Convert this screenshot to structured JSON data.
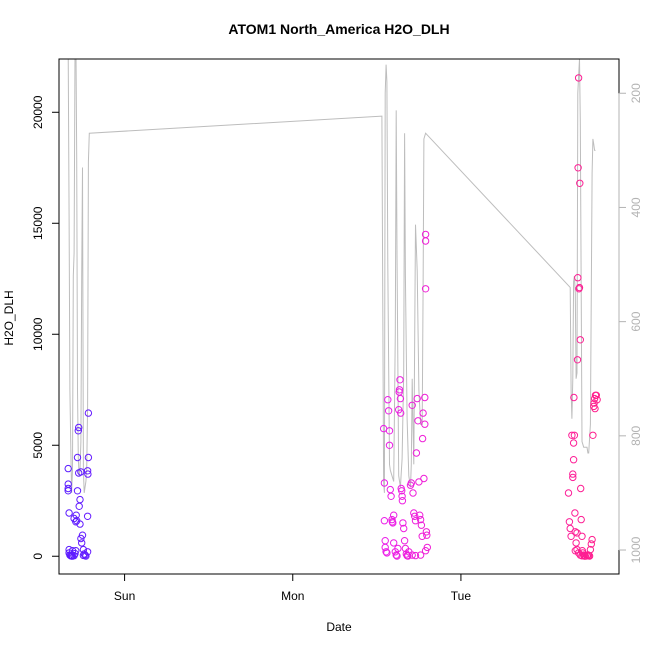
{
  "chart_data": {
    "type": "scatter",
    "title": "ATOM1 North_America H2O_DLH",
    "xlabel": "Date",
    "ylabel": "H2O_DLH",
    "x_unit": "days since first day (Sat 00:00)",
    "xlim": [
      0.61,
      3.94
    ],
    "ylim": [
      -800,
      22400
    ],
    "x_ticks": [
      {
        "value": 1,
        "label": "Sun"
      },
      {
        "value": 2,
        "label": "Mon"
      },
      {
        "value": 3,
        "label": "Tue"
      }
    ],
    "y_ticks": [
      0,
      5000,
      10000,
      15000,
      20000
    ],
    "y2_label_color": "#b3b3b3",
    "y2_lim": [
      1042,
      140
    ],
    "y2_ticks": [
      200,
      400,
      600,
      800,
      1000
    ],
    "grid": false,
    "color_by_time": {
      "start": "#5b1cff",
      "mid": "#e61eff",
      "end": "#ff1e8c"
    },
    "pressure_line_color": "#bdbdbd",
    "scatter_series": [
      {
        "name": "segment1",
        "points": [
          [
            0.665,
            3950
          ],
          [
            0.665,
            3050
          ],
          [
            0.665,
            3250
          ],
          [
            0.665,
            2950
          ],
          [
            0.67,
            1950
          ],
          [
            0.67,
            300
          ],
          [
            0.67,
            150
          ],
          [
            0.675,
            50
          ],
          [
            0.68,
            20
          ],
          [
            0.685,
            10
          ],
          [
            0.69,
            5
          ],
          [
            0.7,
            30
          ],
          [
            0.705,
            120
          ],
          [
            0.71,
            250
          ],
          [
            0.71,
            1550
          ],
          [
            0.712,
            1850
          ],
          [
            0.715,
            1600
          ],
          [
            0.72,
            2950
          ],
          [
            0.72,
            4450
          ],
          [
            0.725,
            5650
          ],
          [
            0.727,
            5800
          ],
          [
            0.727,
            3750
          ],
          [
            0.73,
            2250
          ],
          [
            0.735,
            2550
          ],
          [
            0.735,
            1450
          ],
          [
            0.74,
            800
          ],
          [
            0.745,
            600
          ],
          [
            0.75,
            950
          ],
          [
            0.755,
            300
          ],
          [
            0.76,
            100
          ],
          [
            0.765,
            50
          ],
          [
            0.77,
            10
          ],
          [
            0.78,
            200
          ],
          [
            0.78,
            1800
          ],
          [
            0.78,
            3850
          ],
          [
            0.782,
            3700
          ],
          [
            0.785,
            4450
          ],
          [
            0.785,
            6450
          ],
          [
            0.69,
            250
          ],
          [
            0.7,
            1700
          ],
          [
            0.74,
            3800
          ],
          [
            0.755,
            40
          ]
        ]
      },
      {
        "name": "segment2",
        "points": [
          [
            2.54,
            5750
          ],
          [
            2.545,
            3300
          ],
          [
            2.545,
            1600
          ],
          [
            2.55,
            700
          ],
          [
            2.55,
            400
          ],
          [
            2.555,
            200
          ],
          [
            2.56,
            150
          ],
          [
            2.565,
            7050
          ],
          [
            2.57,
            6550
          ],
          [
            2.575,
            5650
          ],
          [
            2.575,
            5000
          ],
          [
            2.58,
            3000
          ],
          [
            2.585,
            2700
          ],
          [
            2.59,
            1650
          ],
          [
            2.592,
            1550
          ],
          [
            2.595,
            1500
          ],
          [
            2.6,
            600
          ],
          [
            2.61,
            200
          ],
          [
            2.615,
            50
          ],
          [
            2.62,
            10
          ],
          [
            2.625,
            350
          ],
          [
            2.63,
            6600
          ],
          [
            2.633,
            7400
          ],
          [
            2.635,
            7500
          ],
          [
            2.638,
            7950
          ],
          [
            2.64,
            7100
          ],
          [
            2.642,
            6450
          ],
          [
            2.645,
            3050
          ],
          [
            2.648,
            2950
          ],
          [
            2.65,
            2700
          ],
          [
            2.652,
            2500
          ],
          [
            2.655,
            1500
          ],
          [
            2.66,
            1250
          ],
          [
            2.665,
            700
          ],
          [
            2.67,
            350
          ],
          [
            2.675,
            100
          ],
          [
            2.68,
            30
          ],
          [
            2.685,
            10
          ],
          [
            2.69,
            200
          ],
          [
            2.7,
            3200
          ],
          [
            2.705,
            3300
          ],
          [
            2.71,
            6800
          ],
          [
            2.715,
            2850
          ],
          [
            2.72,
            1950
          ],
          [
            2.725,
            1800
          ],
          [
            2.73,
            1600
          ],
          [
            2.735,
            4650
          ],
          [
            2.74,
            7100
          ],
          [
            2.745,
            6100
          ],
          [
            2.75,
            3350
          ],
          [
            2.755,
            1850
          ],
          [
            2.76,
            1650
          ],
          [
            2.765,
            1400
          ],
          [
            2.77,
            900
          ],
          [
            2.772,
            5300
          ],
          [
            2.775,
            6450
          ],
          [
            2.78,
            3500
          ],
          [
            2.785,
            7150
          ],
          [
            2.785,
            5950
          ],
          [
            2.79,
            14200
          ],
          [
            2.79,
            14500
          ],
          [
            2.79,
            12050
          ],
          [
            2.795,
            1100
          ],
          [
            2.797,
            950
          ],
          [
            2.8,
            400
          ],
          [
            2.71,
            50
          ],
          [
            2.73,
            30
          ],
          [
            2.76,
            50
          ],
          [
            2.79,
            250
          ],
          [
            2.6,
            1850
          ]
        ]
      },
      {
        "name": "segment3",
        "points": [
          [
            3.64,
            2850
          ],
          [
            3.645,
            1550
          ],
          [
            3.65,
            1250
          ],
          [
            3.655,
            900
          ],
          [
            3.66,
            5450
          ],
          [
            3.665,
            3700
          ],
          [
            3.665,
            3550
          ],
          [
            3.67,
            4350
          ],
          [
            3.67,
            5100
          ],
          [
            3.672,
            7150
          ],
          [
            3.675,
            5450
          ],
          [
            3.678,
            1950
          ],
          [
            3.68,
            1100
          ],
          [
            3.685,
            600
          ],
          [
            3.69,
            300
          ],
          [
            3.693,
            8850
          ],
          [
            3.695,
            12550
          ],
          [
            3.697,
            17500
          ],
          [
            3.7,
            21550
          ],
          [
            3.702,
            12050
          ],
          [
            3.705,
            12100
          ],
          [
            3.707,
            16800
          ],
          [
            3.71,
            9750
          ],
          [
            3.712,
            3050
          ],
          [
            3.715,
            1650
          ],
          [
            3.72,
            900
          ],
          [
            3.722,
            250
          ],
          [
            3.725,
            150
          ],
          [
            3.73,
            50
          ],
          [
            3.735,
            10
          ],
          [
            3.74,
            5
          ],
          [
            3.75,
            20
          ],
          [
            3.755,
            60
          ],
          [
            3.76,
            30
          ],
          [
            3.765,
            10
          ],
          [
            3.77,
            300
          ],
          [
            3.775,
            550
          ],
          [
            3.78,
            750
          ],
          [
            3.785,
            5450
          ],
          [
            3.79,
            6750
          ],
          [
            3.792,
            6900
          ],
          [
            3.795,
            7100
          ],
          [
            3.797,
            6650
          ],
          [
            3.8,
            7250
          ],
          [
            3.805,
            7250
          ],
          [
            3.81,
            7050
          ],
          [
            3.69,
            1050
          ],
          [
            3.68,
            250
          ],
          [
            3.7,
            150
          ],
          [
            3.71,
            50
          ],
          [
            3.72,
            20
          ]
        ]
      }
    ],
    "pressure_series": {
      "name": "pressure",
      "points": [
        [
          0.66,
          80
        ],
        [
          0.665,
          130
        ],
        [
          0.67,
          420
        ],
        [
          0.675,
          720
        ],
        [
          0.68,
          820
        ],
        [
          0.685,
          900
        ],
        [
          0.69,
          860
        ],
        [
          0.695,
          520
        ],
        [
          0.7,
          480
        ],
        [
          0.705,
          130
        ],
        [
          0.71,
          80
        ],
        [
          0.715,
          310
        ],
        [
          0.72,
          720
        ],
        [
          0.725,
          840
        ],
        [
          0.73,
          870
        ],
        [
          0.735,
          860
        ],
        [
          0.74,
          810
        ],
        [
          0.745,
          520
        ],
        [
          0.75,
          330
        ],
        [
          0.755,
          860
        ],
        [
          0.76,
          900
        ],
        [
          0.77,
          880
        ],
        [
          0.775,
          860
        ],
        [
          0.78,
          750
        ],
        [
          0.785,
          320
        ],
        [
          0.79,
          270
        ],
        [
          2.53,
          240
        ],
        [
          2.54,
          880
        ],
        [
          2.545,
          900
        ],
        [
          2.55,
          200
        ],
        [
          2.555,
          150
        ],
        [
          2.56,
          180
        ],
        [
          2.565,
          500
        ],
        [
          2.575,
          850
        ],
        [
          2.58,
          860
        ],
        [
          2.59,
          870
        ],
        [
          2.6,
          880
        ],
        [
          2.61,
          620
        ],
        [
          2.615,
          230
        ],
        [
          2.62,
          480
        ],
        [
          2.63,
          870
        ],
        [
          2.64,
          890
        ],
        [
          2.65,
          840
        ],
        [
          2.66,
          690
        ],
        [
          2.665,
          270
        ],
        [
          2.67,
          520
        ],
        [
          2.68,
          770
        ],
        [
          2.69,
          870
        ],
        [
          2.7,
          890
        ],
        [
          2.705,
          850
        ],
        [
          2.71,
          700
        ],
        [
          2.715,
          780
        ],
        [
          2.72,
          850
        ],
        [
          2.73,
          430
        ],
        [
          2.74,
          510
        ],
        [
          2.75,
          720
        ],
        [
          2.76,
          780
        ],
        [
          2.77,
          780
        ],
        [
          2.775,
          540
        ],
        [
          2.78,
          280
        ],
        [
          2.79,
          270
        ],
        [
          3.65,
          540
        ],
        [
          3.655,
          720
        ],
        [
          3.66,
          770
        ],
        [
          3.665,
          700
        ],
        [
          3.67,
          530
        ],
        [
          3.675,
          520
        ],
        [
          3.68,
          550
        ],
        [
          3.685,
          700
        ],
        [
          3.69,
          690
        ],
        [
          3.695,
          200
        ],
        [
          3.7,
          170
        ],
        [
          3.705,
          140
        ],
        [
          3.71,
          250
        ],
        [
          3.72,
          810
        ],
        [
          3.73,
          820
        ],
        [
          3.74,
          820
        ],
        [
          3.75,
          820
        ],
        [
          3.755,
          830
        ],
        [
          3.76,
          830
        ],
        [
          3.77,
          780
        ],
        [
          3.78,
          340
        ],
        [
          3.785,
          280
        ],
        [
          3.79,
          290
        ],
        [
          3.795,
          300
        ],
        [
          3.8,
          300
        ]
      ]
    }
  }
}
